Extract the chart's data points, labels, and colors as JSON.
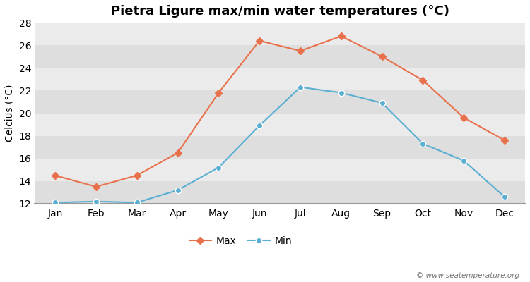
{
  "title": "Pietra Ligure max/min water temperatures (°C)",
  "ylabel": "Celcius (°C)",
  "months": [
    "Jan",
    "Feb",
    "Mar",
    "Apr",
    "May",
    "Jun",
    "Jul",
    "Aug",
    "Sep",
    "Oct",
    "Nov",
    "Dec"
  ],
  "max_temps": [
    14.5,
    13.5,
    14.5,
    16.5,
    21.8,
    26.4,
    25.5,
    26.8,
    25.0,
    22.9,
    19.6,
    17.6
  ],
  "min_temps": [
    12.1,
    12.2,
    12.1,
    13.2,
    15.2,
    18.9,
    22.3,
    21.8,
    20.9,
    17.3,
    15.8,
    12.6
  ],
  "max_color": "#e8704a",
  "min_color": "#5aafd2",
  "fig_bg_color": "#ffffff",
  "band_light": "#ebebeb",
  "band_dark": "#dedede",
  "ylim": [
    12,
    28
  ],
  "yticks": [
    12,
    14,
    16,
    18,
    20,
    22,
    24,
    26,
    28
  ],
  "watermark": "© www.seatemperature.org",
  "title_fontsize": 13,
  "label_fontsize": 10,
  "tick_fontsize": 10,
  "legend_label_max": "Max",
  "legend_label_min": "Min"
}
